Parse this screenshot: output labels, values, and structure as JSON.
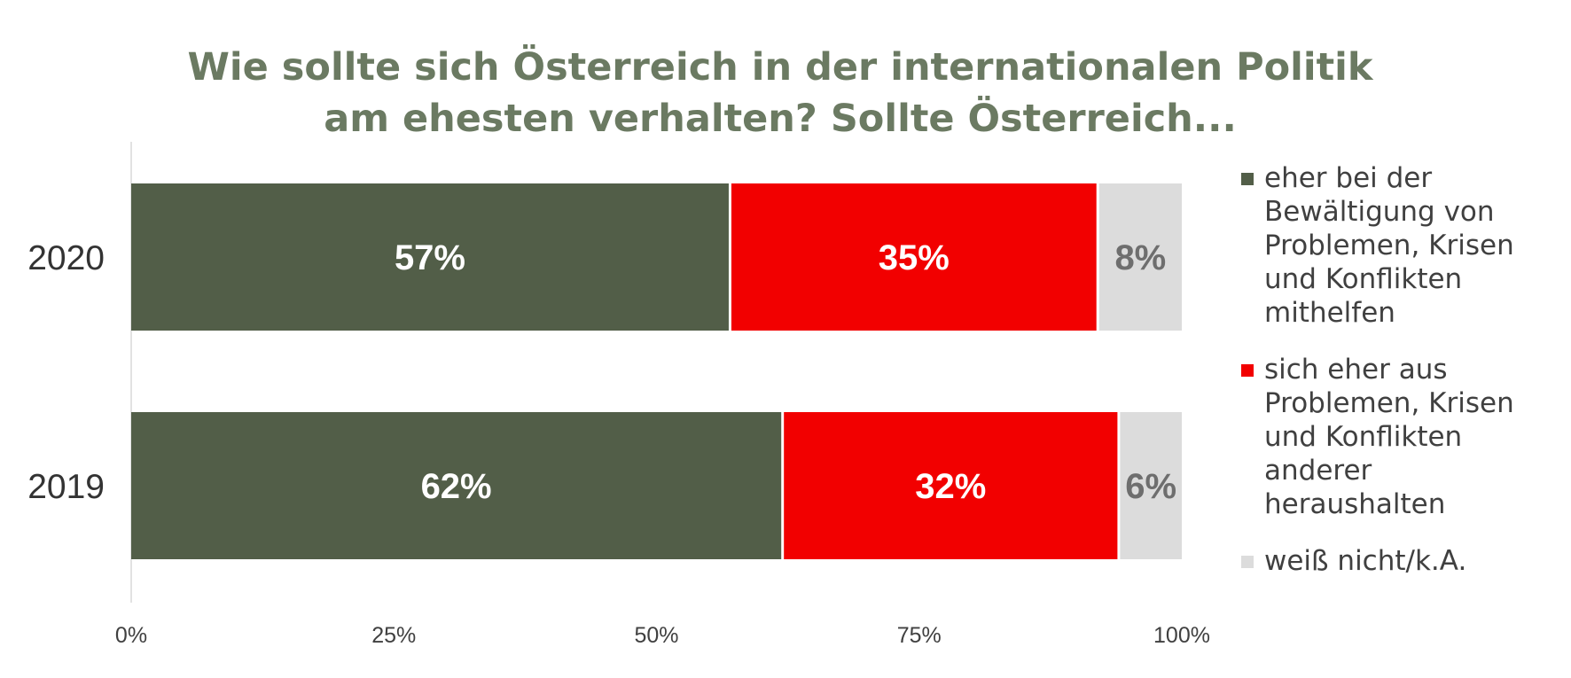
{
  "chart_data": {
    "type": "bar",
    "orientation": "horizontal",
    "stacked": true,
    "title_lines": [
      "Wie sollte sich Österreich in der internationalen Politik",
      "am ehesten verhalten? Sollte Österreich..."
    ],
    "categories": [
      "2020",
      "2019"
    ],
    "series": [
      {
        "name": "eher bei der Bewältigung von Problemen, Krisen und Konflikten mithelfen",
        "color": "#525e48",
        "label_color": "#ffffff",
        "values": [
          57,
          62
        ],
        "labels": [
          "57%",
          "62%"
        ]
      },
      {
        "name": "sich eher aus Problemen, Krisen und Konflikten anderer heraushalten",
        "color": "#f20000",
        "label_color": "#ffffff",
        "values": [
          35,
          32
        ],
        "labels": [
          "35%",
          "32%"
        ]
      },
      {
        "name": "weiß nicht/k.A.",
        "color": "#dcdcdc",
        "label_color": "#6e6e6e",
        "values": [
          8,
          6
        ],
        "labels": [
          "8%",
          "6%"
        ]
      }
    ],
    "xlim": [
      0,
      100
    ],
    "xticks": [
      0,
      25,
      50,
      75,
      100
    ],
    "xtick_labels": [
      "0%",
      "25%",
      "50%",
      "75%",
      "100%"
    ],
    "grid": false,
    "legend_position": "right"
  }
}
